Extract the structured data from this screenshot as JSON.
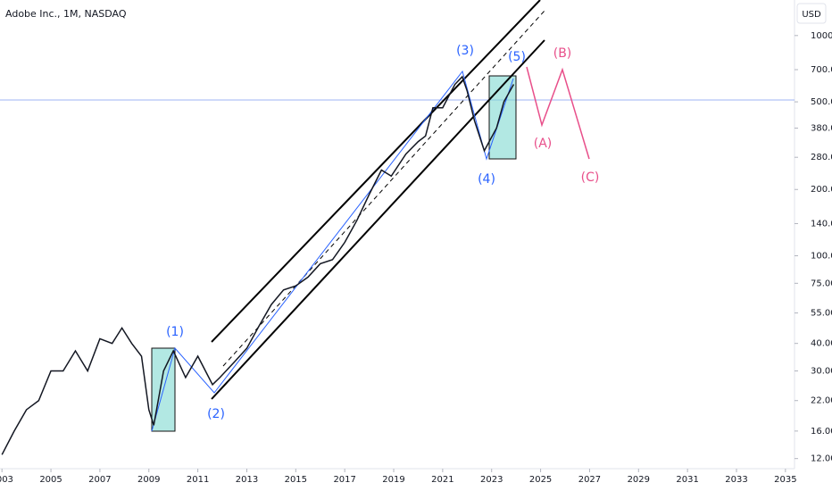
{
  "chart_data": {
    "type": "line",
    "title": "Adobe Inc., 1M, NASDAQ",
    "currency": "USD",
    "log_scale": true,
    "grid": false,
    "color": "#131722",
    "x": [
      2003.0,
      2003.5,
      2004.0,
      2004.5,
      2005.0,
      2005.5,
      2006.0,
      2006.5,
      2007.0,
      2007.5,
      2007.9,
      2008.3,
      2008.7,
      2009.0,
      2009.2,
      2009.6,
      2010.0,
      2010.5,
      2011.0,
      2011.6,
      2011.9,
      2012.5,
      2013.0,
      2013.5,
      2014.0,
      2014.5,
      2015.0,
      2015.5,
      2016.0,
      2016.5,
      2017.0,
      2017.5,
      2018.0,
      2018.5,
      2018.9,
      2019.5,
      2020.0,
      2020.3,
      2020.6,
      2021.0,
      2021.5,
      2021.8,
      2022.0,
      2022.3,
      2022.7,
      2022.9,
      2023.2,
      2023.5,
      2023.9
    ],
    "values": [
      12.5,
      16,
      20,
      22,
      30,
      30,
      37,
      30,
      42,
      40,
      47,
      40,
      35,
      20,
      17,
      30,
      37,
      28,
      35,
      26,
      28,
      33,
      38,
      48,
      60,
      70,
      73,
      80,
      92,
      96,
      115,
      145,
      190,
      245,
      230,
      290,
      330,
      350,
      470,
      470,
      600,
      650,
      560,
      410,
      300,
      330,
      380,
      500,
      600
    ],
    "xlim": [
      2002.92,
      2035.37
    ],
    "xticks": [
      2003,
      2005,
      2007,
      2009,
      2011,
      2013,
      2015,
      2017,
      2019,
      2021,
      2023,
      2025,
      2027,
      2029,
      2031,
      2033,
      2035
    ],
    "ylim": [
      11,
      1450
    ],
    "yticks": [
      {
        "value": 12,
        "label": "12.00"
      },
      {
        "value": 16,
        "label": "16.00"
      },
      {
        "value": 22,
        "label": "22.00"
      },
      {
        "value": 30,
        "label": "30.00"
      },
      {
        "value": 40,
        "label": "40.00"
      },
      {
        "value": 55,
        "label": "55.00"
      },
      {
        "value": 75,
        "label": "75.00"
      },
      {
        "value": 100,
        "label": "100.00"
      },
      {
        "value": 140,
        "label": "140.00"
      },
      {
        "value": 200,
        "label": "200.00"
      },
      {
        "value": 280,
        "label": "280.00"
      },
      {
        "value": 380,
        "label": "380.00"
      },
      {
        "value": 500,
        "label": "500.00"
      },
      {
        "value": 700,
        "label": "700.00"
      },
      {
        "value": 1000,
        "label": "1000.00"
      }
    ],
    "annotations": [
      "(1)",
      "(2)",
      "(3)",
      "(4)",
      "(5)",
      "(A)",
      "(B)",
      "(C)"
    ]
  }
}
